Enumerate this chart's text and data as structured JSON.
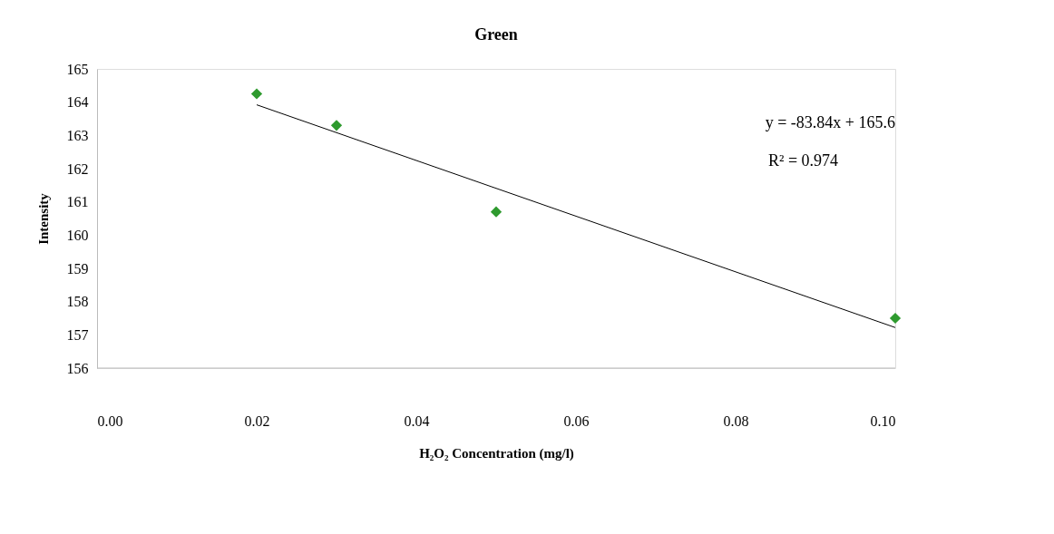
{
  "chart_data": {
    "type": "scatter",
    "title": "Green",
    "xlabel": "H₂O₂ Concentration (mg/l)",
    "ylabel": "Intensity",
    "annotations": [
      "y = -83.84x + 165.6",
      "R² = 0.974"
    ],
    "series": [
      {
        "color": "#2e9a2e",
        "marker": "diamond",
        "x": [
          0.02,
          0.03,
          0.05,
          0.1
        ],
        "values": [
          164.25,
          163.3,
          160.7,
          157.5
        ]
      },
      {
        "type": "line",
        "color": "#000000",
        "marker": "none",
        "x": [
          0.02,
          0.1
        ],
        "values": [
          163.92,
          157.22
        ]
      }
    ],
    "xlim": [
      0,
      0.1
    ],
    "xticks": [
      {
        "value": 0,
        "label": "0.00"
      },
      {
        "value": 0.02,
        "label": "0.02"
      },
      {
        "value": 0.04,
        "label": "0.04"
      },
      {
        "value": 0.06,
        "label": "0.06"
      },
      {
        "value": 0.08,
        "label": "0.08"
      },
      {
        "value": 0.1,
        "label": "0.10"
      }
    ],
    "ylim": [
      156,
      165
    ],
    "yticks": [
      156,
      157,
      158,
      159,
      160,
      161,
      162,
      163,
      164,
      165
    ],
    "grid": false
  }
}
